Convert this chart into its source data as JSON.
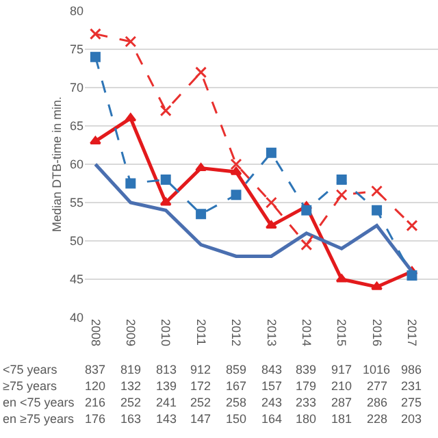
{
  "chart_data": {
    "type": "line",
    "ylabel": "Median DTB-time in min.",
    "categories": [
      "2008",
      "2009",
      "2010",
      "2011",
      "2012",
      "2013",
      "2014",
      "2015",
      "2016",
      "2017"
    ],
    "series": [
      {
        "color": "#e8302e",
        "values": [
          77,
          76,
          67,
          72,
          60,
          55,
          49.5,
          56,
          56.5,
          52
        ],
        "marker": "cross",
        "line_style": "dashed"
      },
      {
        "color": "#2e75b6",
        "values": [
          74,
          57.5,
          58,
          53.5,
          56,
          61.5,
          54,
          58,
          54,
          45.5
        ],
        "marker": "square",
        "line_style": "dashed"
      },
      {
        "color": "#e31a1c",
        "values": [
          63,
          66,
          55,
          59.5,
          59,
          52,
          54.5,
          45,
          44,
          46
        ],
        "marker": "triangle",
        "line_style": "solid"
      },
      {
        "color": "#4a6fb0",
        "values": [
          60,
          55,
          54,
          49.5,
          48,
          48,
          51,
          49,
          52,
          46
        ],
        "marker": "none",
        "line_style": "solid"
      }
    ],
    "ylim": [
      40,
      80
    ],
    "yticks": [
      40,
      45,
      50,
      55,
      60,
      65,
      70,
      75,
      80
    ],
    "grid": "y",
    "annotations": [
      "<75 years",
      "837",
      "819",
      "813",
      "912",
      "859",
      "843",
      "839",
      "917",
      "1016",
      "986",
      "≥75 years",
      "120",
      "132",
      "139",
      "172",
      "167",
      "157",
      "179",
      "210",
      "277",
      "231",
      "en <75 years",
      "216",
      "252",
      "241",
      "252",
      "258",
      "243",
      "233",
      "287",
      "286",
      "275",
      "en ≥75 years",
      "176",
      "163",
      "143",
      "147",
      "150",
      "164",
      "180",
      "181",
      "228",
      "203"
    ]
  }
}
